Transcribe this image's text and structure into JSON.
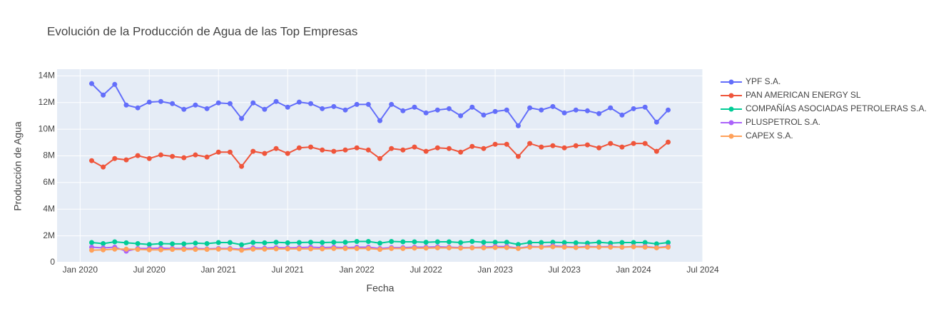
{
  "chart_data": {
    "type": "line",
    "title": "Evolución de la Producción de Agua de las Top Empresas",
    "xlabel": "Fecha",
    "ylabel": "Producción de Agua",
    "x": [
      "2020-02",
      "2020-03",
      "2020-04",
      "2020-05",
      "2020-06",
      "2020-07",
      "2020-08",
      "2020-09",
      "2020-10",
      "2020-11",
      "2020-12",
      "2021-01",
      "2021-02",
      "2021-03",
      "2021-04",
      "2021-05",
      "2021-06",
      "2021-07",
      "2021-08",
      "2021-09",
      "2021-10",
      "2021-11",
      "2021-12",
      "2022-01",
      "2022-02",
      "2022-03",
      "2022-04",
      "2022-05",
      "2022-06",
      "2022-07",
      "2022-08",
      "2022-09",
      "2022-10",
      "2022-11",
      "2022-12",
      "2023-01",
      "2023-02",
      "2023-03",
      "2023-04",
      "2023-05",
      "2023-06",
      "2023-07",
      "2023-08",
      "2023-09",
      "2023-10",
      "2023-11",
      "2023-12",
      "2024-01",
      "2024-02",
      "2024-03",
      "2024-04"
    ],
    "series": [
      {
        "name": "YPF S.A.",
        "color": "#636efa",
        "values": [
          13420000,
          12560000,
          13360000,
          11810000,
          11600000,
          12030000,
          12080000,
          11920000,
          11490000,
          11810000,
          11540000,
          11970000,
          11920000,
          10800000,
          11970000,
          11490000,
          12080000,
          11650000,
          12030000,
          11920000,
          11540000,
          11700000,
          11440000,
          11860000,
          11860000,
          10640000,
          11860000,
          11380000,
          11650000,
          11220000,
          11440000,
          11540000,
          11010000,
          11650000,
          11060000,
          11330000,
          11440000,
          10260000,
          11600000,
          11440000,
          11700000,
          11220000,
          11440000,
          11380000,
          11170000,
          11600000,
          11060000,
          11540000,
          11650000,
          10530000,
          11440000
        ]
      },
      {
        "name": "PAN AMERICAN ENERGY SL",
        "color": "#ef553b",
        "values": [
          7640000,
          7160000,
          7800000,
          7700000,
          8020000,
          7800000,
          8070000,
          7960000,
          7860000,
          8070000,
          7910000,
          8280000,
          8280000,
          7210000,
          8340000,
          8180000,
          8550000,
          8180000,
          8600000,
          8660000,
          8440000,
          8340000,
          8440000,
          8600000,
          8440000,
          7800000,
          8550000,
          8440000,
          8660000,
          8340000,
          8600000,
          8550000,
          8280000,
          8710000,
          8550000,
          8870000,
          8870000,
          7960000,
          8930000,
          8660000,
          8760000,
          8600000,
          8760000,
          8820000,
          8600000,
          8930000,
          8660000,
          8930000,
          8930000,
          8340000,
          9030000
        ]
      },
      {
        "name": "COMPAÑÍAS ASOCIADAS PETROLERAS S.A.",
        "color": "#00cc96",
        "values": [
          1500000,
          1420000,
          1550000,
          1480000,
          1420000,
          1350000,
          1420000,
          1400000,
          1400000,
          1450000,
          1420000,
          1500000,
          1500000,
          1330000,
          1500000,
          1480000,
          1520000,
          1480000,
          1500000,
          1520000,
          1500000,
          1520000,
          1520000,
          1580000,
          1580000,
          1450000,
          1580000,
          1550000,
          1550000,
          1520000,
          1550000,
          1550000,
          1500000,
          1580000,
          1520000,
          1520000,
          1520000,
          1350000,
          1500000,
          1500000,
          1520000,
          1500000,
          1480000,
          1450000,
          1520000,
          1450000,
          1500000,
          1500000,
          1500000,
          1400000,
          1500000
        ]
      },
      {
        "name": "PLUSPETROL S.A.",
        "color": "#ab63fa",
        "values": [
          1150000,
          1100000,
          1150000,
          850000,
          1050000,
          1050000,
          1080000,
          1050000,
          1050000,
          1050000,
          1020000,
          1050000,
          1050000,
          980000,
          1100000,
          1080000,
          1120000,
          1100000,
          1120000,
          1150000,
          1120000,
          1150000,
          1120000,
          1150000,
          1150000,
          1050000,
          1120000,
          1120000,
          1150000,
          1150000,
          1180000,
          1150000,
          1120000,
          1120000,
          1150000,
          1200000,
          1200000,
          1080000,
          1200000,
          1180000,
          1250000,
          1200000,
          1150000,
          1200000,
          1180000,
          1200000,
          1150000,
          1200000,
          1200000,
          1120000,
          1200000
        ]
      },
      {
        "name": "CAPEX S.A.",
        "color": "#ffa15a",
        "values": [
          920000,
          950000,
          1000000,
          1000000,
          980000,
          950000,
          950000,
          980000,
          980000,
          980000,
          980000,
          1000000,
          1000000,
          920000,
          1000000,
          1000000,
          1020000,
          1020000,
          1020000,
          1020000,
          1020000,
          1050000,
          1050000,
          1050000,
          1050000,
          980000,
          1050000,
          1050000,
          1080000,
          1080000,
          1100000,
          1100000,
          1080000,
          1100000,
          1100000,
          1120000,
          1120000,
          1050000,
          1150000,
          1150000,
          1180000,
          1150000,
          1120000,
          1150000,
          1150000,
          1150000,
          1150000,
          1180000,
          1150000,
          1100000,
          1150000
        ]
      }
    ],
    "xlim": [
      "2019-11",
      "2024-07"
    ],
    "xticks": [
      {
        "value": "2020-01",
        "label": "Jan 2020"
      },
      {
        "value": "2020-07",
        "label": "Jul 2020"
      },
      {
        "value": "2021-01",
        "label": "Jan 2021"
      },
      {
        "value": "2021-07",
        "label": "Jul 2021"
      },
      {
        "value": "2022-01",
        "label": "Jan 2022"
      },
      {
        "value": "2022-07",
        "label": "Jul 2022"
      },
      {
        "value": "2023-01",
        "label": "Jan 2023"
      },
      {
        "value": "2023-07",
        "label": "Jul 2023"
      },
      {
        "value": "2024-01",
        "label": "Jan 2024"
      },
      {
        "value": "2024-07",
        "label": "Jul 2024"
      }
    ],
    "ylim": [
      0,
      14500000
    ],
    "yticks": [
      0,
      {
        "value": 2000000,
        "label": "2M"
      },
      {
        "value": 4000000,
        "label": "4M"
      },
      {
        "value": 6000000,
        "label": "6M"
      },
      {
        "value": 8000000,
        "label": "8M"
      },
      {
        "value": 10000000,
        "label": "10M"
      },
      {
        "value": 12000000,
        "label": "12M"
      },
      {
        "value": 14000000,
        "label": "14M"
      }
    ],
    "grid": true,
    "legend": "top-right"
  }
}
